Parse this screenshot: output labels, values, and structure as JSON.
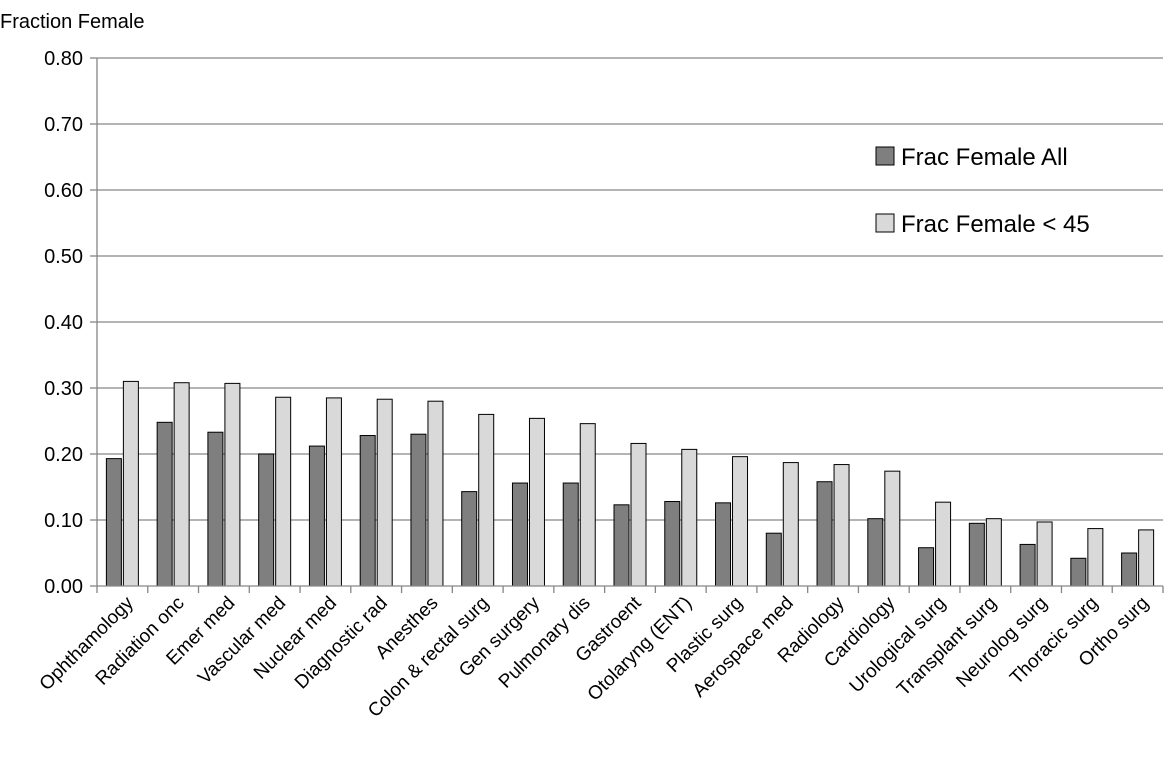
{
  "chart_data": {
    "type": "bar",
    "ylabel": "Fraction Female",
    "xlabel": "",
    "ylim": [
      0,
      0.8
    ],
    "yticks": [
      "0.00",
      "0.10",
      "0.20",
      "0.30",
      "0.40",
      "0.50",
      "0.60",
      "0.70",
      "0.80"
    ],
    "grid": true,
    "legend_position": "top-right",
    "categories": [
      "Ophthamology",
      "Radiation onc",
      "Emer med",
      "Vascular med",
      "Nuclear med",
      "Diagnostic rad",
      "Anesthes",
      "Colon & rectal surg",
      "Gen surgery",
      "Pulmonary dis",
      "Gastroent",
      "Otolaryng (ENT)",
      "Plastic surg",
      "Aerospace med",
      "Radiology",
      "Cardiology",
      "Urological surg",
      "Transplant surg",
      "Neurolog surg",
      "Thoracic surg",
      "Ortho surg"
    ],
    "series": [
      {
        "name": "Frac Female All",
        "color": "#7f7f7f",
        "values": [
          0.193,
          0.248,
          0.233,
          0.2,
          0.212,
          0.228,
          0.23,
          0.143,
          0.156,
          0.156,
          0.123,
          0.128,
          0.126,
          0.08,
          0.158,
          0.102,
          0.058,
          0.095,
          0.063,
          0.042,
          0.05
        ]
      },
      {
        "name": "Frac Female < 45",
        "color": "#d9d9d9",
        "values": [
          0.31,
          0.308,
          0.307,
          0.286,
          0.285,
          0.283,
          0.28,
          0.26,
          0.254,
          0.246,
          0.216,
          0.207,
          0.196,
          0.187,
          0.184,
          0.174,
          0.127,
          0.102,
          0.097,
          0.087,
          0.085
        ]
      }
    ]
  }
}
